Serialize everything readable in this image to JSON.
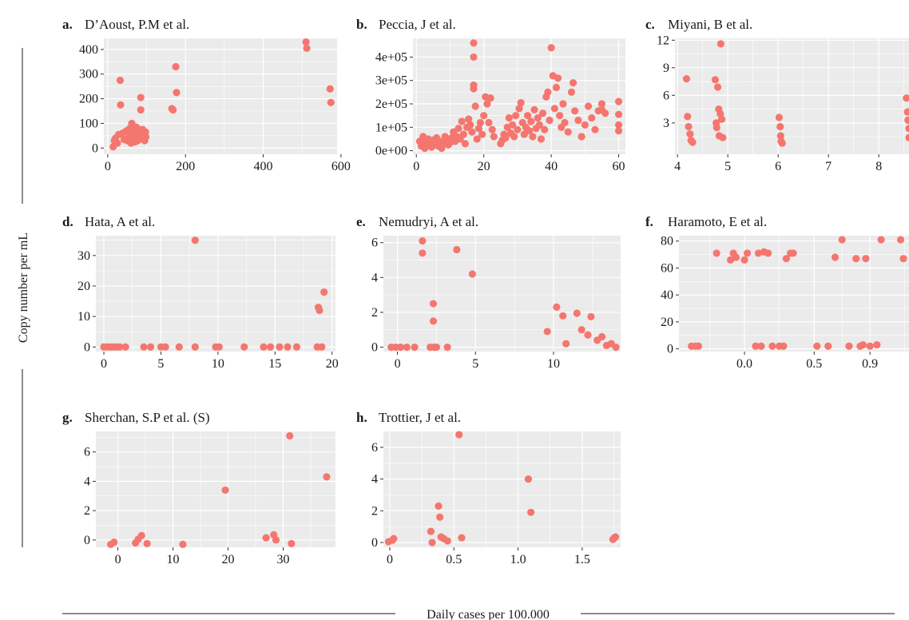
{
  "figure": {
    "y_axis_label": "Copy number per mL",
    "x_axis_label": "Daily cases per 100.000"
  },
  "colors": {
    "point": "#f4766f",
    "panel_bg": "#ebebeb",
    "grid": "#ffffff",
    "text": "#1a1a1a",
    "tick": "#333333"
  },
  "chart_data": [
    {
      "type": "scatter",
      "letter": "a.",
      "title": "D’Aoust, P.M et al.",
      "xlim": [
        -10,
        590
      ],
      "ylim": [
        -25,
        445
      ],
      "grid": true,
      "xticks": [
        0,
        200,
        400,
        600
      ],
      "xticklabels": [
        "0",
        "200",
        "400",
        "600"
      ],
      "yticks": [
        0,
        100,
        200,
        300,
        400
      ],
      "yticklabels": [
        "0",
        "100",
        "200",
        "300",
        "400"
      ],
      "points": [
        [
          14,
          5
        ],
        [
          17,
          30
        ],
        [
          20,
          40
        ],
        [
          25,
          20
        ],
        [
          28,
          55
        ],
        [
          32,
          275
        ],
        [
          33,
          175
        ],
        [
          38,
          60
        ],
        [
          42,
          35
        ],
        [
          48,
          70
        ],
        [
          50,
          30
        ],
        [
          55,
          45
        ],
        [
          55,
          60
        ],
        [
          57,
          80
        ],
        [
          60,
          20
        ],
        [
          62,
          100
        ],
        [
          63,
          40
        ],
        [
          65,
          70
        ],
        [
          68,
          55
        ],
        [
          70,
          25
        ],
        [
          73,
          85
        ],
        [
          75,
          45
        ],
        [
          77,
          30
        ],
        [
          80,
          60
        ],
        [
          82,
          75
        ],
        [
          85,
          155
        ],
        [
          85,
          205
        ],
        [
          87,
          40
        ],
        [
          90,
          75
        ],
        [
          95,
          30
        ],
        [
          97,
          65
        ],
        [
          98,
          45
        ],
        [
          165,
          160
        ],
        [
          168,
          155
        ],
        [
          175,
          330
        ],
        [
          177,
          225
        ],
        [
          510,
          430
        ],
        [
          512,
          405
        ],
        [
          572,
          240
        ],
        [
          574,
          185
        ]
      ]
    },
    {
      "type": "scatter",
      "letter": "b.",
      "title": "Peccia, J et al.",
      "xlim": [
        -1,
        62
      ],
      "ylim": [
        -15000,
        480000
      ],
      "grid": true,
      "xticks": [
        0,
        20,
        40,
        60
      ],
      "xticklabels": [
        "0",
        "20",
        "40",
        "60"
      ],
      "yticks": [
        0,
        100000,
        200000,
        300000,
        400000
      ],
      "yticklabels": [
        "0e+00",
        "1e+05",
        "2e+05",
        "3e+05",
        "4e+05"
      ],
      "points": [
        [
          1,
          40000
        ],
        [
          1.5,
          20000
        ],
        [
          2,
          60000
        ],
        [
          2.5,
          10000
        ],
        [
          3,
          35000
        ],
        [
          3.5,
          50000
        ],
        [
          4,
          25000
        ],
        [
          4.5,
          15000
        ],
        [
          5,
          45000
        ],
        [
          5.5,
          30000
        ],
        [
          6,
          55000
        ],
        [
          6.5,
          20000
        ],
        [
          7,
          40000
        ],
        [
          7.5,
          10000
        ],
        [
          8,
          30000
        ],
        [
          8.5,
          60000
        ],
        [
          9,
          45000
        ],
        [
          9.5,
          25000
        ],
        [
          10,
          35000
        ],
        [
          10.5,
          55000
        ],
        [
          11,
          80000
        ],
        [
          11.5,
          40000
        ],
        [
          12,
          60000
        ],
        [
          12.5,
          95000
        ],
        [
          13,
          50000
        ],
        [
          13.5,
          125000
        ],
        [
          14,
          70000
        ],
        [
          14.5,
          30000
        ],
        [
          15,
          100000
        ],
        [
          15.5,
          135000
        ],
        [
          16,
          110000
        ],
        [
          16.5,
          80000
        ],
        [
          17,
          460000
        ],
        [
          17,
          400000
        ],
        [
          17,
          280000
        ],
        [
          17,
          265000
        ],
        [
          17.5,
          190000
        ],
        [
          18,
          50000
        ],
        [
          18.5,
          95000
        ],
        [
          19,
          120000
        ],
        [
          19.5,
          70000
        ],
        [
          20,
          150000
        ],
        [
          20.5,
          230000
        ],
        [
          21,
          200000
        ],
        [
          21.5,
          120000
        ],
        [
          22,
          225000
        ],
        [
          22.5,
          90000
        ],
        [
          23,
          60000
        ],
        [
          25,
          30000
        ],
        [
          25.5,
          45000
        ],
        [
          26,
          70000
        ],
        [
          26.5,
          55000
        ],
        [
          27,
          100000
        ],
        [
          27.5,
          140000
        ],
        [
          28,
          75000
        ],
        [
          28.5,
          110000
        ],
        [
          29,
          60000
        ],
        [
          29.5,
          150000
        ],
        [
          30,
          90000
        ],
        [
          30.5,
          180000
        ],
        [
          31,
          205000
        ],
        [
          31.5,
          120000
        ],
        [
          32,
          70000
        ],
        [
          32.5,
          100000
        ],
        [
          33,
          150000
        ],
        [
          33.5,
          85000
        ],
        [
          34,
          125000
        ],
        [
          34.5,
          60000
        ],
        [
          35,
          175000
        ],
        [
          35.5,
          95000
        ],
        [
          36,
          140000
        ],
        [
          36.5,
          110000
        ],
        [
          37,
          50000
        ],
        [
          37.5,
          160000
        ],
        [
          38,
          90000
        ],
        [
          38.5,
          230000
        ],
        [
          39,
          250000
        ],
        [
          39.5,
          130000
        ],
        [
          40,
          440000
        ],
        [
          40.5,
          320000
        ],
        [
          41,
          180000
        ],
        [
          41.5,
          270000
        ],
        [
          42,
          310000
        ],
        [
          42.5,
          150000
        ],
        [
          43,
          100000
        ],
        [
          43.5,
          200000
        ],
        [
          44,
          120000
        ],
        [
          45,
          80000
        ],
        [
          46,
          250000
        ],
        [
          46.5,
          290000
        ],
        [
          47,
          170000
        ],
        [
          48,
          130000
        ],
        [
          49,
          60000
        ],
        [
          50,
          110000
        ],
        [
          51,
          190000
        ],
        [
          52,
          140000
        ],
        [
          53,
          90000
        ],
        [
          54,
          170000
        ],
        [
          55,
          200000
        ],
        [
          55,
          175000
        ],
        [
          56,
          160000
        ],
        [
          60,
          210000
        ],
        [
          60,
          155000
        ],
        [
          60,
          110000
        ],
        [
          60,
          85000
        ]
      ]
    },
    {
      "type": "scatter",
      "letter": "c.",
      "title": "Miyani, B et al.",
      "xlim": [
        3.95,
        8.6
      ],
      "ylim": [
        -0.4,
        12.2
      ],
      "grid": true,
      "xticks": [
        4,
        5,
        6,
        7,
        8
      ],
      "xticklabels": [
        "4",
        "5",
        "6",
        "7",
        "8"
      ],
      "yticks": [
        3,
        6,
        9,
        12
      ],
      "yticklabels": [
        "3",
        "6",
        "9",
        "12"
      ],
      "points": [
        [
          4.18,
          7.8
        ],
        [
          4.2,
          3.7
        ],
        [
          4.22,
          2.6
        ],
        [
          4.25,
          1.8
        ],
        [
          4.27,
          1.1
        ],
        [
          4.3,
          0.9
        ],
        [
          4.75,
          7.7
        ],
        [
          4.77,
          3.0
        ],
        [
          4.78,
          2.5
        ],
        [
          4.8,
          6.9
        ],
        [
          4.82,
          4.5
        ],
        [
          4.83,
          1.6
        ],
        [
          4.85,
          4.0
        ],
        [
          4.86,
          11.6
        ],
        [
          4.88,
          3.4
        ],
        [
          4.9,
          1.4
        ],
        [
          6.02,
          3.6
        ],
        [
          6.04,
          2.6
        ],
        [
          6.05,
          1.6
        ],
        [
          6.06,
          1.0
        ],
        [
          6.08,
          0.8
        ],
        [
          8.55,
          5.7
        ],
        [
          8.57,
          4.2
        ],
        [
          8.58,
          3.3
        ],
        [
          8.6,
          2.4
        ],
        [
          8.6,
          1.4
        ]
      ]
    },
    {
      "type": "scatter",
      "letter": "d.",
      "title": "Hata, A et al.",
      "xlim": [
        -0.7,
        20.3
      ],
      "ylim": [
        -1.5,
        36.5
      ],
      "grid": true,
      "xticks": [
        0,
        5,
        10,
        15,
        20
      ],
      "xticklabels": [
        "0",
        "5",
        "10",
        "15",
        "20"
      ],
      "yticks": [
        0,
        10,
        20,
        30
      ],
      "yticklabels": [
        "0",
        "10",
        "20",
        "30"
      ],
      "points": [
        [
          0,
          0
        ],
        [
          0.3,
          0
        ],
        [
          0.6,
          0
        ],
        [
          0.9,
          0
        ],
        [
          1.1,
          0
        ],
        [
          1.4,
          0
        ],
        [
          1.9,
          0
        ],
        [
          3.5,
          0
        ],
        [
          4.1,
          0
        ],
        [
          5,
          0
        ],
        [
          5.4,
          0
        ],
        [
          6.6,
          0
        ],
        [
          8,
          35
        ],
        [
          8,
          0
        ],
        [
          9.8,
          0
        ],
        [
          10.1,
          0
        ],
        [
          12.3,
          0
        ],
        [
          14,
          0
        ],
        [
          14.6,
          0
        ],
        [
          15.4,
          0
        ],
        [
          16.1,
          0
        ],
        [
          16.9,
          0
        ],
        [
          18.7,
          0
        ],
        [
          18.8,
          13
        ],
        [
          18.9,
          12
        ],
        [
          19.1,
          0
        ],
        [
          19.3,
          18
        ]
      ]
    },
    {
      "type": "scatter",
      "letter": "e.",
      "title": "Nemudryi, A et al.",
      "xlim": [
        -0.9,
        14.3
      ],
      "ylim": [
        -0.25,
        6.4
      ],
      "grid": true,
      "xticks": [
        0,
        5,
        10
      ],
      "xticklabels": [
        "0",
        "5",
        "10"
      ],
      "yticks": [
        0,
        2,
        4,
        6
      ],
      "yticklabels": [
        "0",
        "2",
        "4",
        "6"
      ],
      "points": [
        [
          -0.4,
          0
        ],
        [
          -0.1,
          0
        ],
        [
          0.2,
          0
        ],
        [
          0.6,
          0
        ],
        [
          1.1,
          0
        ],
        [
          1.6,
          6.1
        ],
        [
          1.6,
          5.4
        ],
        [
          2.1,
          0
        ],
        [
          2.3,
          2.5
        ],
        [
          2.3,
          1.5
        ],
        [
          2.35,
          0
        ],
        [
          2.5,
          0
        ],
        [
          3.2,
          0
        ],
        [
          3.8,
          5.6
        ],
        [
          4.8,
          4.2
        ],
        [
          9.6,
          0.9
        ],
        [
          10.2,
          2.3
        ],
        [
          10.6,
          1.8
        ],
        [
          10.8,
          0.2
        ],
        [
          11.5,
          1.95
        ],
        [
          11.8,
          1.0
        ],
        [
          12.2,
          0.7
        ],
        [
          12.4,
          1.75
        ],
        [
          12.8,
          0.4
        ],
        [
          13.1,
          0.6
        ],
        [
          13.4,
          0.1
        ],
        [
          13.7,
          0.2
        ],
        [
          14,
          0
        ]
      ]
    },
    {
      "type": "scatter",
      "letter": "f.",
      "title": "Haramoto, E et al.",
      "xlim": [
        -0.47,
        1.18
      ],
      "ylim": [
        -2,
        84
      ],
      "grid": true,
      "xticks": [
        0.0,
        0.5,
        0.9
      ],
      "xticklabels": [
        "0.0",
        "0.5",
        "0.9"
      ],
      "yticks": [
        0,
        20,
        40,
        60,
        80
      ],
      "yticklabels": [
        "0",
        "20",
        "40",
        "60",
        "80"
      ],
      "points": [
        [
          -0.38,
          2
        ],
        [
          -0.35,
          2
        ],
        [
          -0.33,
          2
        ],
        [
          -0.2,
          71
        ],
        [
          -0.1,
          66
        ],
        [
          -0.08,
          71
        ],
        [
          -0.06,
          68
        ],
        [
          0.0,
          66
        ],
        [
          0.02,
          71
        ],
        [
          0.08,
          2
        ],
        [
          0.1,
          71
        ],
        [
          0.12,
          2
        ],
        [
          0.14,
          72
        ],
        [
          0.17,
          71
        ],
        [
          0.2,
          2
        ],
        [
          0.25,
          2
        ],
        [
          0.28,
          2
        ],
        [
          0.3,
          67
        ],
        [
          0.33,
          71
        ],
        [
          0.35,
          71
        ],
        [
          0.52,
          2
        ],
        [
          0.6,
          2
        ],
        [
          0.65,
          68
        ],
        [
          0.7,
          81
        ],
        [
          0.75,
          2
        ],
        [
          0.8,
          67
        ],
        [
          0.83,
          2
        ],
        [
          0.85,
          3
        ],
        [
          0.87,
          67
        ],
        [
          0.9,
          2
        ],
        [
          0.95,
          3
        ],
        [
          0.98,
          81
        ],
        [
          1.12,
          81
        ],
        [
          1.14,
          67
        ]
      ]
    },
    {
      "type": "scatter",
      "letter": "g.",
      "title": "Sherchan, S.P et al. (S)",
      "xlim": [
        -4,
        39.5
      ],
      "ylim": [
        -0.5,
        7.4
      ],
      "grid": true,
      "xticks": [
        0,
        10,
        20,
        30
      ],
      "xticklabels": [
        "0",
        "10",
        "20",
        "30"
      ],
      "yticks": [
        0,
        2,
        4,
        6
      ],
      "yticklabels": [
        "0",
        "2",
        "4",
        "6"
      ],
      "points": [
        [
          -1.3,
          -0.3
        ],
        [
          -0.7,
          -0.15
        ],
        [
          3.2,
          -0.2
        ],
        [
          3.7,
          0.05
        ],
        [
          4.3,
          0.3
        ],
        [
          5.3,
          -0.25
        ],
        [
          11.8,
          -0.3
        ],
        [
          19.5,
          3.4
        ],
        [
          26.9,
          0.15
        ],
        [
          28.3,
          0.35
        ],
        [
          28.7,
          0.0
        ],
        [
          31.2,
          7.1
        ],
        [
          31.5,
          -0.25
        ],
        [
          37.9,
          4.3
        ]
      ]
    },
    {
      "type": "scatter",
      "letter": "h.",
      "title": "Trottier, J et al.",
      "xlim": [
        -0.05,
        1.8
      ],
      "ylim": [
        -0.3,
        7.0
      ],
      "grid": true,
      "xticks": [
        0.0,
        0.5,
        1.0,
        1.5
      ],
      "xticklabels": [
        "0",
        "0.5",
        "1.0",
        "1.5"
      ],
      "yticks": [
        0,
        2,
        4,
        6
      ],
      "yticklabels": [
        "0",
        "2",
        "4",
        "6"
      ],
      "points": [
        [
          -0.01,
          0.05
        ],
        [
          0.02,
          0.15
        ],
        [
          0.03,
          0.25
        ],
        [
          0.32,
          0.7
        ],
        [
          0.33,
          0.0
        ],
        [
          0.38,
          2.3
        ],
        [
          0.39,
          1.6
        ],
        [
          0.4,
          0.35
        ],
        [
          0.42,
          0.25
        ],
        [
          0.45,
          0.1
        ],
        [
          0.54,
          6.8
        ],
        [
          0.56,
          0.3
        ],
        [
          1.08,
          4.0
        ],
        [
          1.1,
          1.9
        ],
        [
          1.74,
          0.2
        ],
        [
          1.75,
          0.3
        ],
        [
          1.76,
          0.35
        ]
      ]
    }
  ]
}
